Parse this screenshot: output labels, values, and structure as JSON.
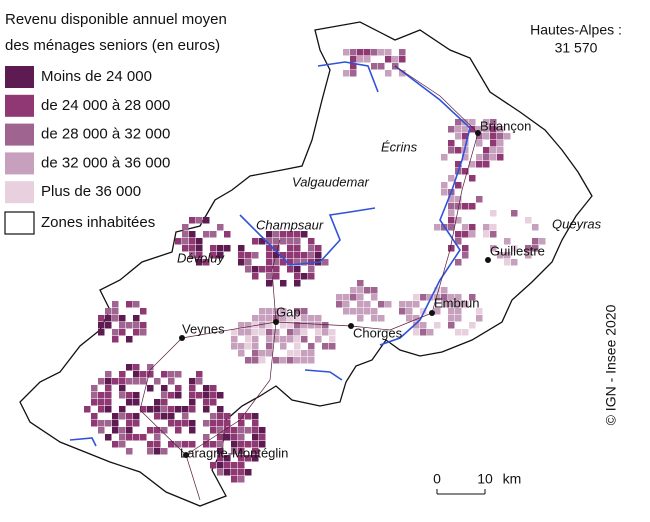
{
  "legend": {
    "title": [
      "Revenu disponible annuel moyen",
      "des ménages seniors (en euros)"
    ],
    "items": [
      {
        "label": "Moins de 24 000",
        "color": "#5e1b52"
      },
      {
        "label": "de 24 000 à 28 000",
        "color": "#8f3873"
      },
      {
        "label": "de 28 000 à 32 000",
        "color": "#9f6590"
      },
      {
        "label": "de 32 000 à 36 000",
        "color": "#c7a0bd"
      },
      {
        "label": "Plus de 36 000",
        "color": "#e8d0df"
      },
      {
        "label": "Zones inhabitées",
        "color": "#ffffff"
      }
    ]
  },
  "total": {
    "label": "Hautes-Alpes :",
    "value": "31 570"
  },
  "places": [
    "Briançon",
    "Écrins",
    "Valgaudemar",
    "Champsaur",
    "Guillestre",
    "Queyras",
    "Dévoluy",
    "Embrun",
    "Gap",
    "Veynes",
    "Chorges",
    "Laragne-Montéglin"
  ],
  "scale": [
    "0",
    "10",
    "km"
  ],
  "credit": "© IGN - Insee 2020"
}
